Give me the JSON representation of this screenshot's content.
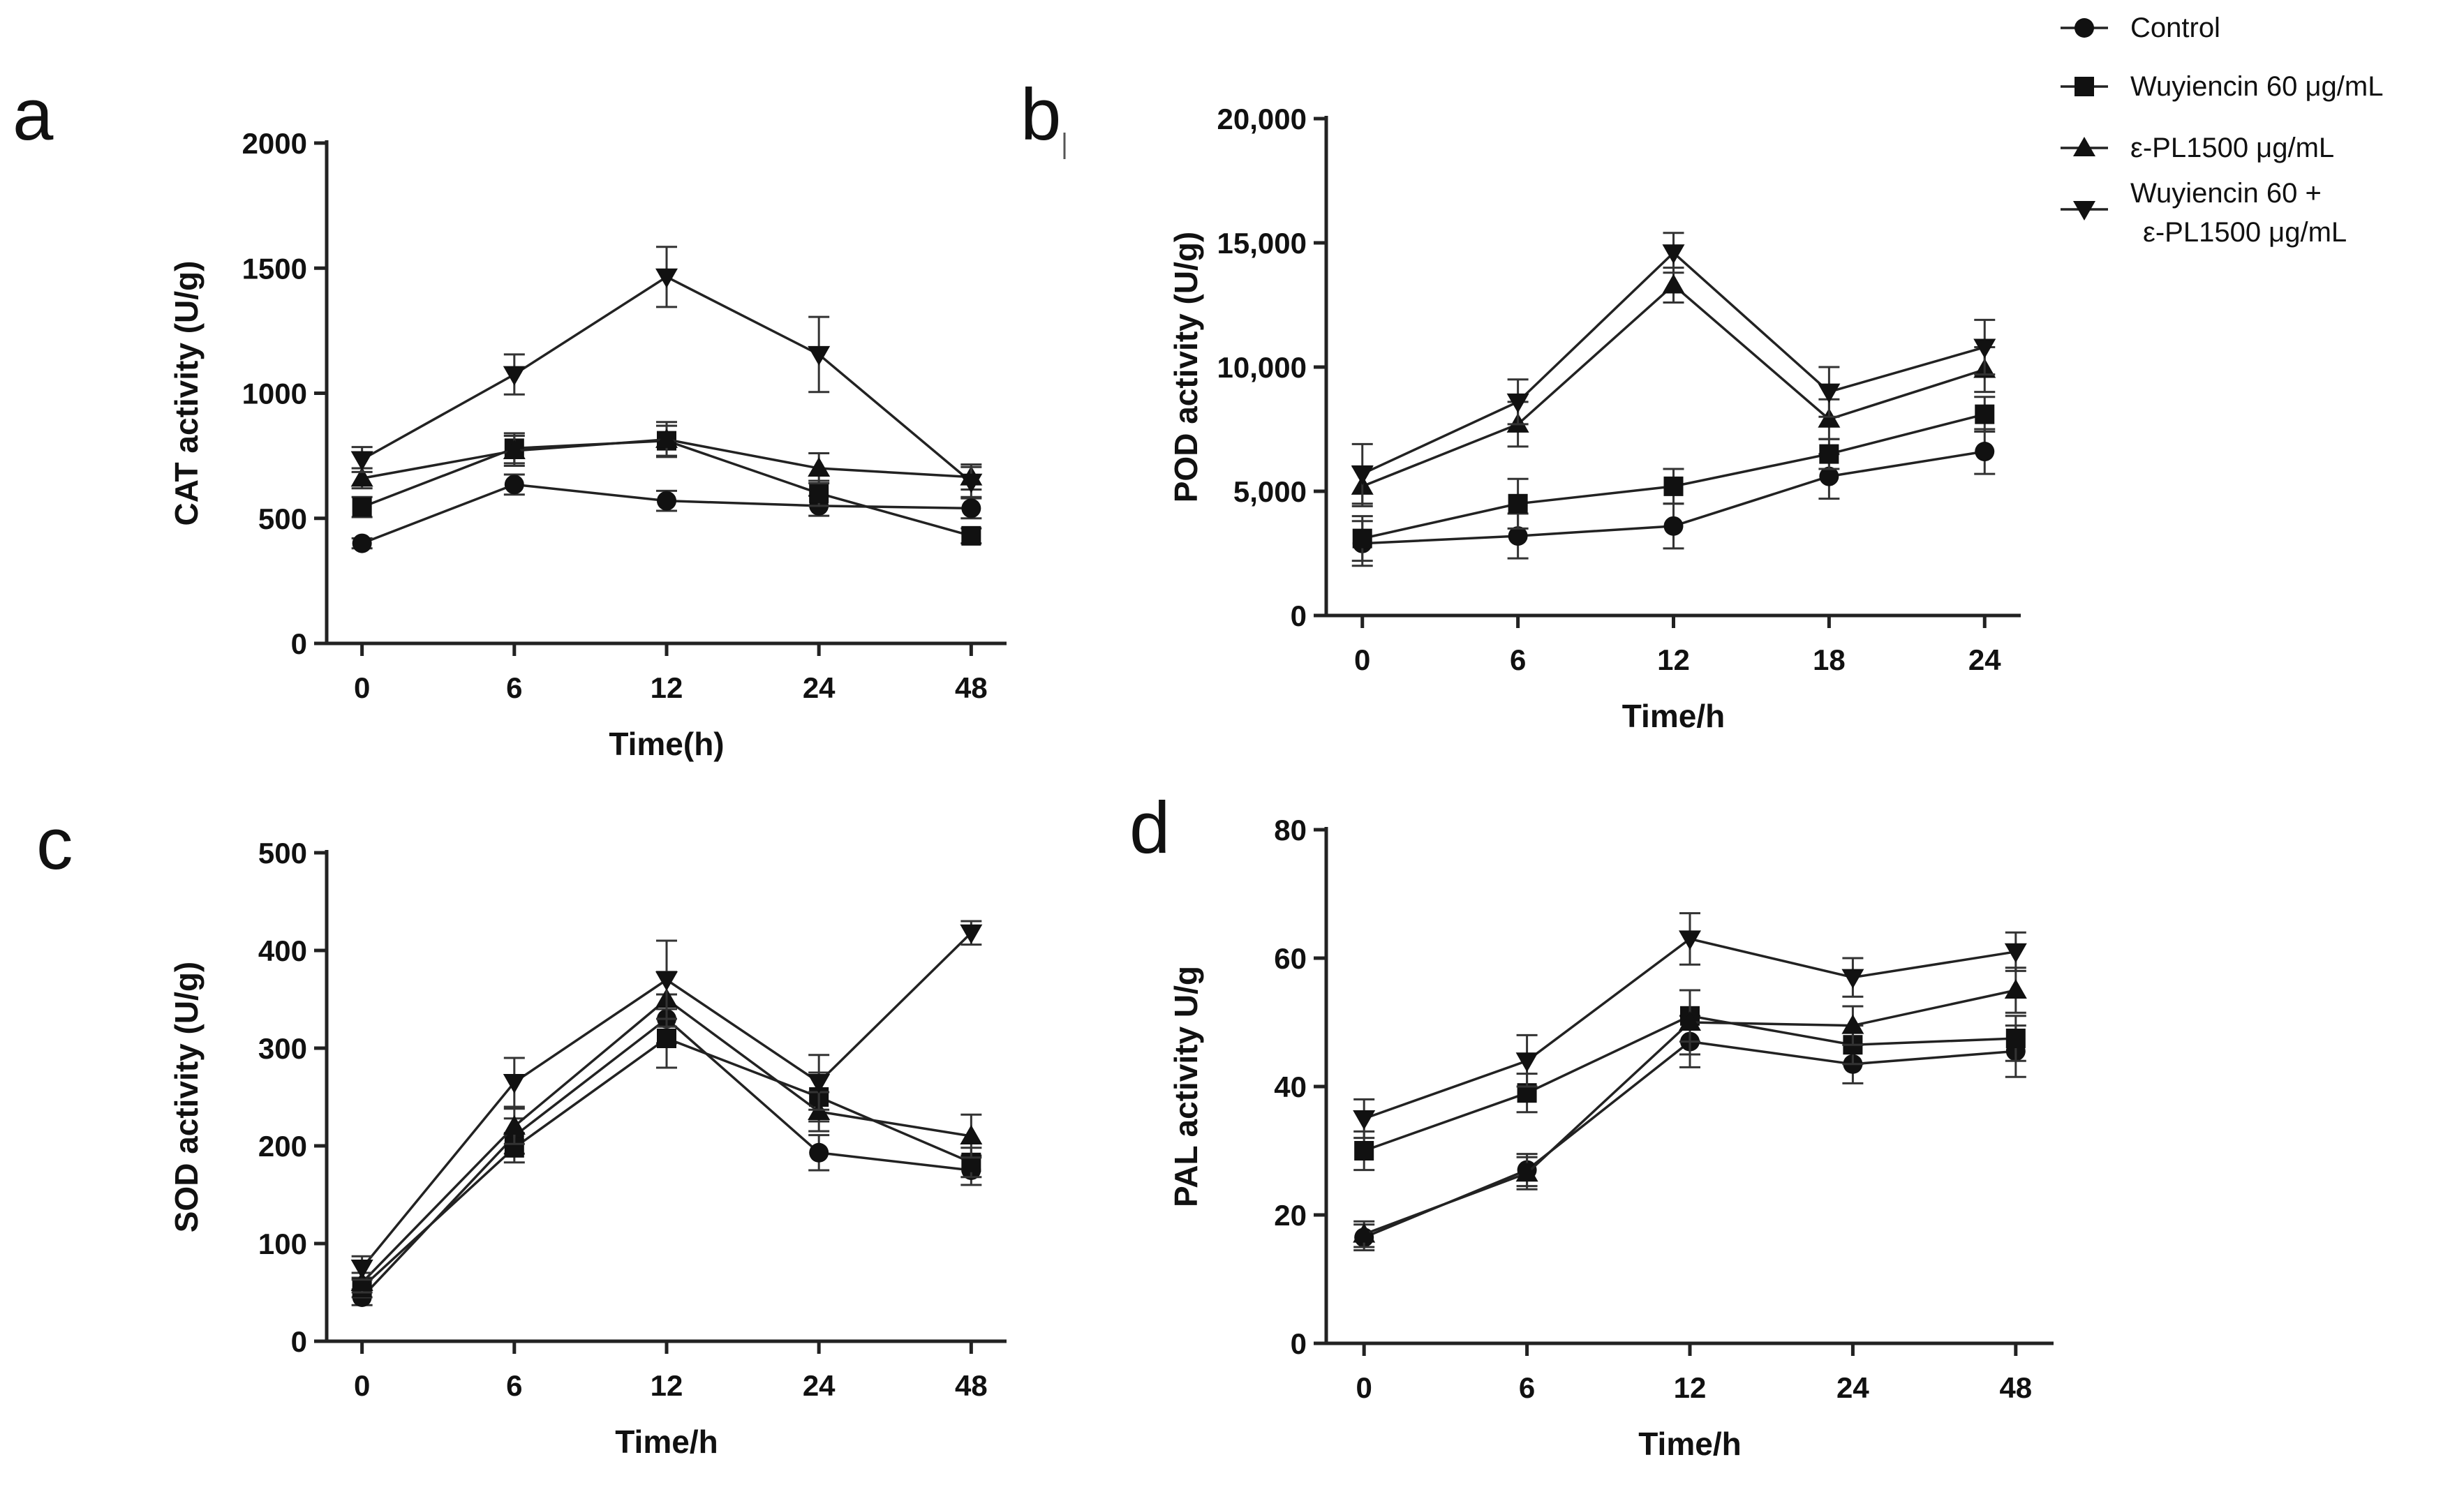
{
  "legend": {
    "entries": [
      {
        "label": "Control",
        "marker": "circle"
      },
      {
        "label": "Wuyiencin 60 μg/mL",
        "marker": "square"
      },
      {
        "label": "ε-PL1500 μg/mL",
        "marker": "triangle-up"
      },
      {
        "label_lines": [
          "Wuyiencin 60 +",
          "ε-PL1500 μg/mL"
        ],
        "marker": "triangle-down"
      }
    ]
  },
  "chart_data": [
    {
      "panel": "a",
      "type": "line",
      "xlabel": "Time(h)",
      "ylabel": "CAT activity (U/g)",
      "categories": [
        "0",
        "6",
        "12",
        "24",
        "48"
      ],
      "ylim": [
        0,
        2000
      ],
      "yticks": [
        "0",
        "500",
        "1000",
        "1500",
        "2000"
      ],
      "series": [
        {
          "name": "Control",
          "marker": "circle",
          "values": [
            400,
            635,
            570,
            550,
            540
          ],
          "errors": [
            20,
            40,
            40,
            40,
            40
          ]
        },
        {
          "name": "Wuyiencin 60 μg/mL",
          "marker": "square",
          "values": [
            545,
            780,
            810,
            600,
            430
          ],
          "errors": [
            40,
            60,
            60,
            50,
            30
          ]
        },
        {
          "name": "ε-PL1500 μg/mL",
          "marker": "triangle-up",
          "values": [
            660,
            770,
            815,
            700,
            665
          ],
          "errors": [
            40,
            60,
            70,
            60,
            50
          ]
        },
        {
          "name": "Wuyiencin 60 + ε-PL1500 μg/mL",
          "marker": "triangle-down",
          "values": [
            735,
            1075,
            1465,
            1155,
            645
          ],
          "errors": [
            50,
            80,
            120,
            150,
            60
          ]
        }
      ]
    },
    {
      "panel": "b",
      "type": "line",
      "xlabel": "Time/h",
      "ylabel": "POD activity (U/g)",
      "categories": [
        "0",
        "6",
        "12",
        "18",
        "24"
      ],
      "ylim": [
        0,
        20000
      ],
      "yticks": [
        "0",
        "5,000",
        "10,000",
        "15,000",
        "20,000"
      ],
      "series": [
        {
          "name": "Control",
          "marker": "circle",
          "values": [
            2900,
            3200,
            3600,
            5600,
            6600
          ],
          "errors": [
            900,
            900,
            900,
            900,
            900
          ]
        },
        {
          "name": "Wuyiencin 60 μg/mL",
          "marker": "square",
          "values": [
            3100,
            4500,
            5200,
            6500,
            8100
          ],
          "errors": [
            900,
            1000,
            700,
            600,
            700
          ]
        },
        {
          "name": "ε-PL1500 μg/mL",
          "marker": "triangle-up",
          "values": [
            5200,
            7700,
            13300,
            7900,
            9900
          ],
          "errors": [
            800,
            900,
            700,
            800,
            900
          ]
        },
        {
          "name": "Wuyiencin 60 + ε-PL1500 μg/mL",
          "marker": "triangle-down",
          "values": [
            5700,
            8600,
            14600,
            9000,
            10800
          ],
          "errors": [
            1200,
            900,
            800,
            1000,
            1100
          ]
        }
      ]
    },
    {
      "panel": "c",
      "type": "line",
      "xlabel": "Time/h",
      "ylabel": "SOD activity (U/g)",
      "categories": [
        "0",
        "6",
        "12",
        "24",
        "48"
      ],
      "ylim": [
        0,
        500
      ],
      "yticks": [
        "0",
        "100",
        "200",
        "300",
        "400",
        "500"
      ],
      "series": [
        {
          "name": "Control",
          "marker": "circle",
          "values": [
            45,
            210,
            330,
            193,
            175
          ],
          "errors": [
            8,
            18,
            25,
            18,
            15
          ]
        },
        {
          "name": "Wuyiencin 60 μg/mL",
          "marker": "square",
          "values": [
            55,
            198,
            310,
            250,
            183
          ],
          "errors": [
            10,
            15,
            30,
            25,
            15
          ]
        },
        {
          "name": "ε-PL1500 μg/mL",
          "marker": "triangle-up",
          "values": [
            60,
            220,
            350,
            235,
            210
          ],
          "errors": [
            10,
            18,
            28,
            20,
            22
          ]
        },
        {
          "name": "Wuyiencin 60 + ε-PL1500 μg/mL",
          "marker": "triangle-down",
          "values": [
            75,
            265,
            370,
            265,
            418
          ],
          "errors": [
            12,
            25,
            40,
            28,
            12
          ]
        }
      ]
    },
    {
      "panel": "d",
      "type": "line",
      "xlabel": "Time/h",
      "ylabel": "PAL activity U/g",
      "categories": [
        "0",
        "6",
        "12",
        "24",
        "48"
      ],
      "ylim": [
        0,
        80
      ],
      "yticks": [
        "0",
        "20",
        "40",
        "60",
        "80"
      ],
      "series": [
        {
          "name": "Control",
          "marker": "circle",
          "values": [
            16.5,
            27,
            47,
            43.5,
            45.5
          ],
          "errors": [
            2,
            2.5,
            4,
            3,
            4
          ]
        },
        {
          "name": "Wuyiencin 60 μg/mL",
          "marker": "square",
          "values": [
            30,
            39,
            51,
            46.5,
            47.5
          ],
          "errors": [
            3,
            3,
            4,
            3,
            3.5
          ]
        },
        {
          "name": "ε-PL1500 μg/mL",
          "marker": "triangle-up",
          "values": [
            17,
            26.5,
            50,
            49.5,
            55
          ],
          "errors": [
            2,
            2.5,
            5,
            3,
            3.5
          ]
        },
        {
          "name": "Wuyiencin 60 + ε-PL1500 μg/mL",
          "marker": "triangle-down",
          "values": [
            35,
            44,
            63,
            57,
            61
          ],
          "errors": [
            3,
            4,
            4,
            3,
            3
          ]
        }
      ]
    }
  ]
}
